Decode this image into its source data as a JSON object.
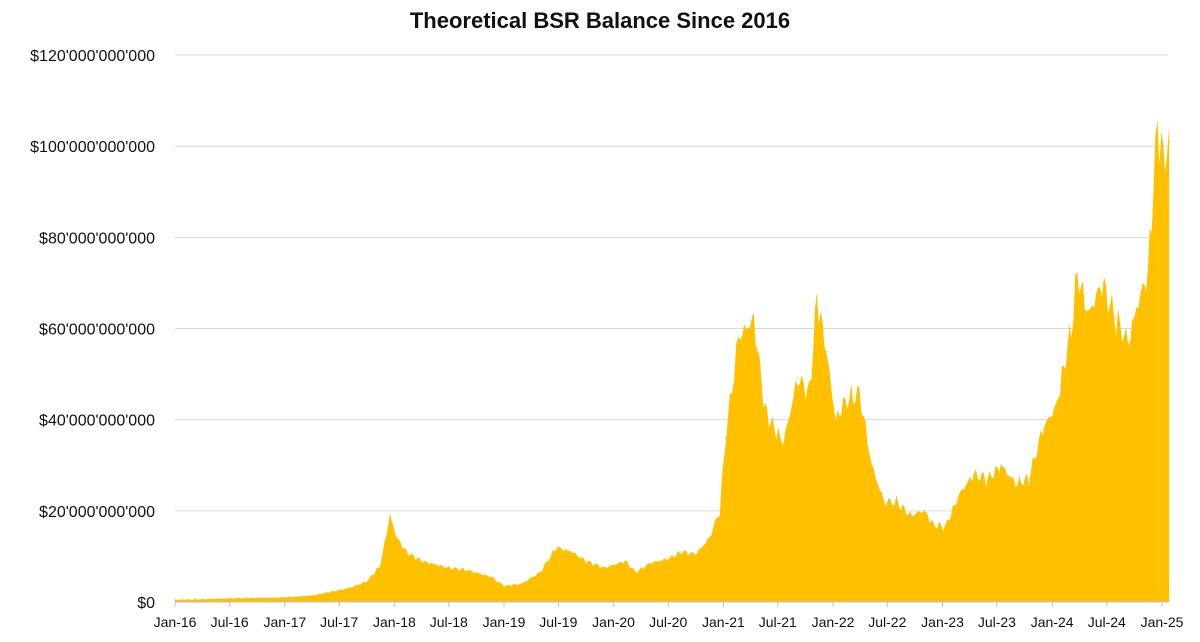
{
  "chart_data": {
    "type": "area",
    "title": "Theoretical BSR Balance Since 2016",
    "xlabel": "",
    "ylabel": "",
    "ylim": [
      0,
      120000000000
    ],
    "grid": true,
    "legend": "none",
    "colors": {
      "area": "#FFC000",
      "grid": "#d9d9d9",
      "text": "#111111"
    },
    "y_ticks": [
      {
        "value": 0,
        "label": "$0"
      },
      {
        "value": 20000000000,
        "label": "$20'000'000'000"
      },
      {
        "value": 40000000000,
        "label": "$40'000'000'000"
      },
      {
        "value": 60000000000,
        "label": "$60'000'000'000"
      },
      {
        "value": 80000000000,
        "label": "$80'000'000'000"
      },
      {
        "value": 100000000000,
        "label": "$100'000'000'000"
      },
      {
        "value": 120000000000,
        "label": "$120'000'000'000"
      }
    ],
    "x_ticks": [
      {
        "date": "2016-01-01",
        "label": "Jan-16"
      },
      {
        "date": "2016-07-01",
        "label": "Jul-16"
      },
      {
        "date": "2017-01-01",
        "label": "Jan-17"
      },
      {
        "date": "2017-07-01",
        "label": "Jul-17"
      },
      {
        "date": "2018-01-01",
        "label": "Jan-18"
      },
      {
        "date": "2018-07-01",
        "label": "Jul-18"
      },
      {
        "date": "2019-01-01",
        "label": "Jan-19"
      },
      {
        "date": "2019-07-01",
        "label": "Jul-19"
      },
      {
        "date": "2020-01-01",
        "label": "Jan-20"
      },
      {
        "date": "2020-07-01",
        "label": "Jul-20"
      },
      {
        "date": "2021-01-01",
        "label": "Jan-21"
      },
      {
        "date": "2021-07-01",
        "label": "Jul-21"
      },
      {
        "date": "2022-01-01",
        "label": "Jan-22"
      },
      {
        "date": "2022-07-01",
        "label": "Jul-22"
      },
      {
        "date": "2023-01-01",
        "label": "Jan-23"
      },
      {
        "date": "2023-07-01",
        "label": "Jul-23"
      },
      {
        "date": "2024-01-01",
        "label": "Jan-24"
      },
      {
        "date": "2024-07-01",
        "label": "Jul-24"
      },
      {
        "date": "2025-01-01",
        "label": "Jan-25"
      }
    ],
    "series": [
      {
        "x": [
          "2016-01-01",
          "2016-04-01",
          "2016-07-01",
          "2016-10-01",
          "2017-01-01",
          "2017-04-01",
          "2017-06-01",
          "2017-08-01",
          "2017-10-01",
          "2017-11-15",
          "2017-12-17",
          "2018-01-10",
          "2018-02-10",
          "2018-04-01",
          "2018-07-01",
          "2018-09-01",
          "2018-11-20",
          "2019-01-01",
          "2019-03-01",
          "2019-05-01",
          "2019-06-25",
          "2019-08-15",
          "2019-10-01",
          "2019-12-01",
          "2020-02-10",
          "2020-03-15",
          "2020-05-01",
          "2020-07-01",
          "2020-08-15",
          "2020-10-01",
          "2020-11-15",
          "2020-12-20",
          "2021-01-08",
          "2021-02-20",
          "2021-04-12",
          "2021-05-20",
          "2021-06-20",
          "2021-07-20",
          "2021-09-05",
          "2021-10-15",
          "2021-11-08",
          "2021-12-10",
          "2022-01-10",
          "2022-02-10",
          "2022-03-30",
          "2022-05-10",
          "2022-06-20",
          "2022-08-01",
          "2022-09-15",
          "2022-11-01",
          "2022-12-01",
          "2023-01-10",
          "2023-03-01",
          "2023-04-15",
          "2023-06-01",
          "2023-07-15",
          "2023-09-01",
          "2023-10-15",
          "2023-12-01",
          "2024-01-15",
          "2024-03-05",
          "2024-03-25",
          "2024-05-01",
          "2024-06-15",
          "2024-08-01",
          "2024-09-10",
          "2024-10-15",
          "2024-11-15",
          "2024-12-10",
          "2024-12-17",
          "2025-01-05",
          "2025-01-25"
        ],
        "values": [
          500000000,
          600000000,
          800000000,
          900000000,
          1000000000,
          1400000000,
          2200000000,
          3000000000,
          4500000000,
          8000000000,
          19000000000,
          14000000000,
          11000000000,
          9000000000,
          7500000000,
          7000000000,
          5500000000,
          3500000000,
          4000000000,
          6500000000,
          12000000000,
          11000000000,
          9000000000,
          7500000000,
          9000000000,
          6500000000,
          8500000000,
          9500000000,
          11000000000,
          10500000000,
          14000000000,
          20000000000,
          36000000000,
          58000000000,
          62000000000,
          42000000000,
          38000000000,
          35000000000,
          49000000000,
          46000000000,
          67000000000,
          55000000000,
          40000000000,
          44000000000,
          46000000000,
          30000000000,
          22000000000,
          22000000000,
          19000000000,
          20000000000,
          17000000000,
          16500000000,
          24000000000,
          28000000000,
          27000000000,
          30000000000,
          26000000000,
          27000000000,
          38000000000,
          43000000000,
          60000000000,
          72000000000,
          63000000000,
          70000000000,
          62000000000,
          57000000000,
          66000000000,
          72000000000,
          98000000000,
          105000000000,
          97000000000,
          101000000000
        ]
      }
    ]
  }
}
